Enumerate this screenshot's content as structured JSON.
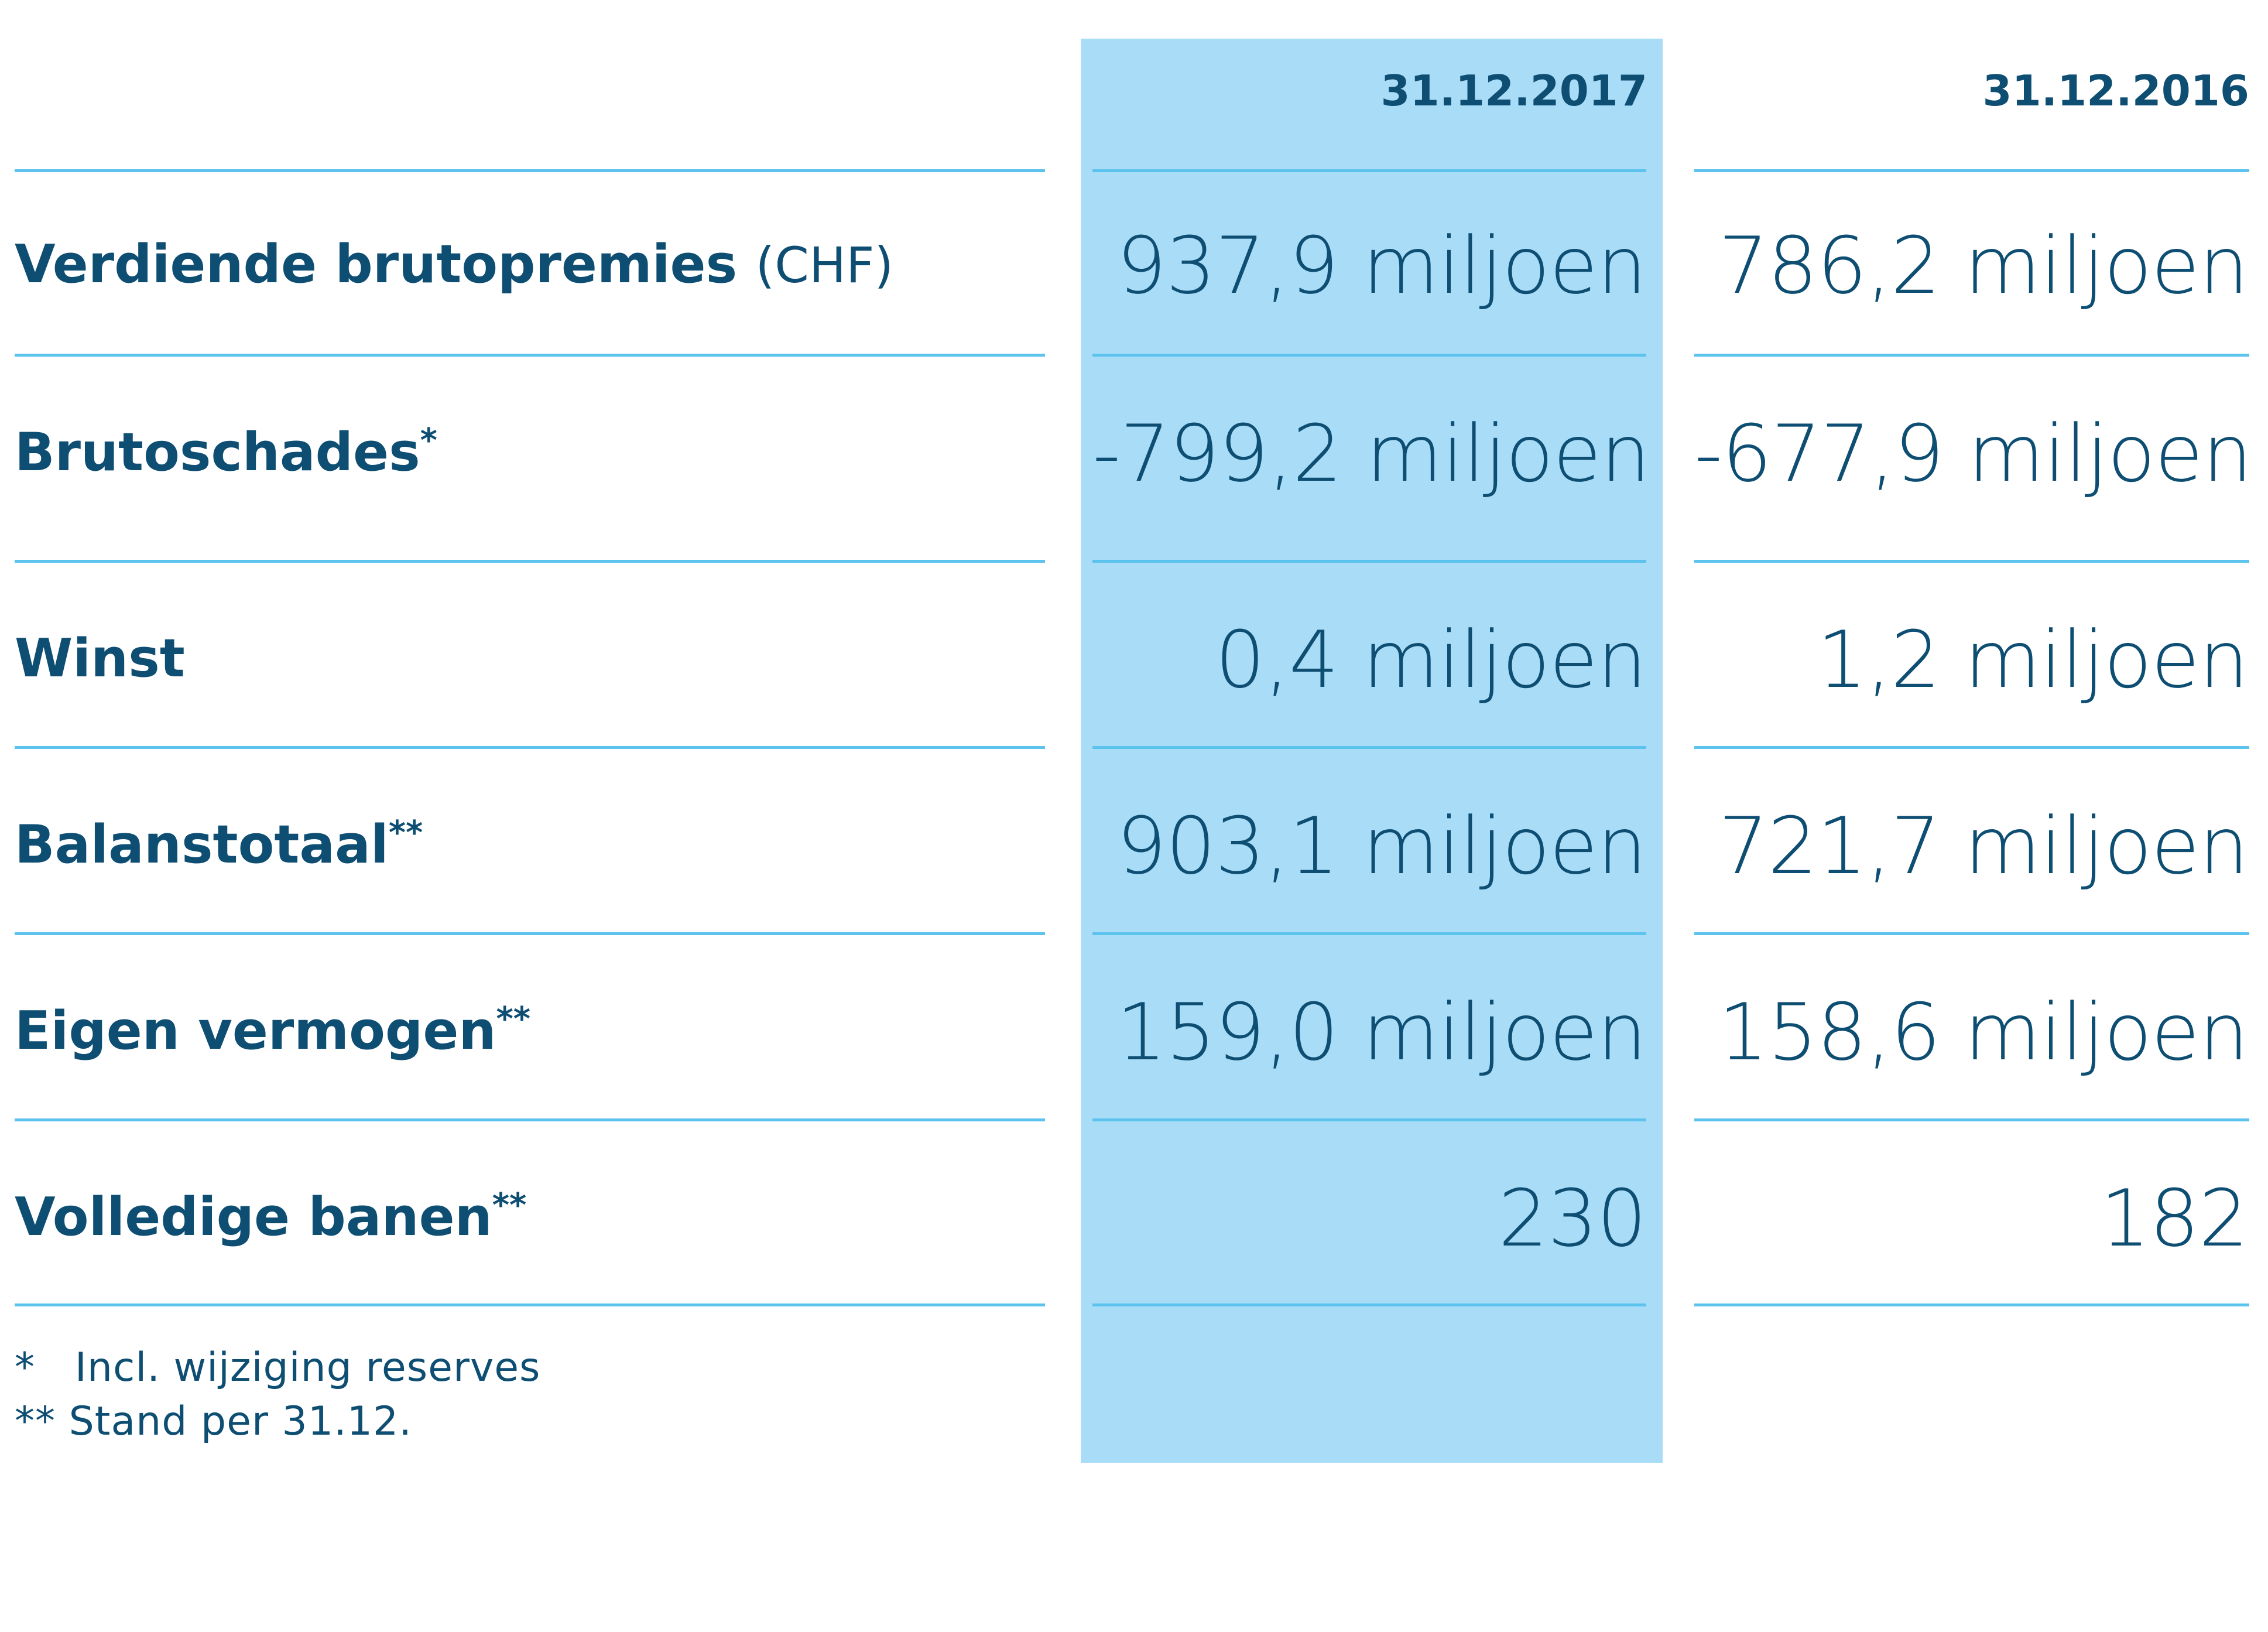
{
  "header": {
    "col_2017": "31.12.2017",
    "col_2016": "31.12.2016"
  },
  "rows": [
    {
      "label": "Verdiende brutopremies",
      "unit": "(CHF)",
      "mark": "",
      "v2017": "937,9 miljoen",
      "v2016": "786,2 miljoen"
    },
    {
      "label": "Brutoschades",
      "unit": "",
      "mark": "*",
      "v2017": "-799,2 miljoen",
      "v2016": "-677,9 miljoen"
    },
    {
      "label": "Winst",
      "unit": "",
      "mark": "",
      "v2017": "0,4 miljoen",
      "v2016": "1,2 miljoen"
    },
    {
      "label": "Balanstotaal",
      "unit": "",
      "mark": "**",
      "v2017": "903,1 miljoen",
      "v2016": "721,7 miljoen"
    },
    {
      "label": "Eigen vermogen",
      "unit": "",
      "mark": "**",
      "v2017": "159,0 miljoen",
      "v2016": "158,6 miljoen"
    },
    {
      "label": "Volledige banen",
      "unit": "",
      "mark": "**",
      "v2017": "230",
      "v2016": "182"
    }
  ],
  "footnotes": [
    "*   Incl. wijziging reserves",
    "** Stand per 31.12."
  ],
  "colors": {
    "text": "#0e4e73",
    "rule": "#5cc3ee",
    "highlight_column": "#a9dcf7"
  }
}
